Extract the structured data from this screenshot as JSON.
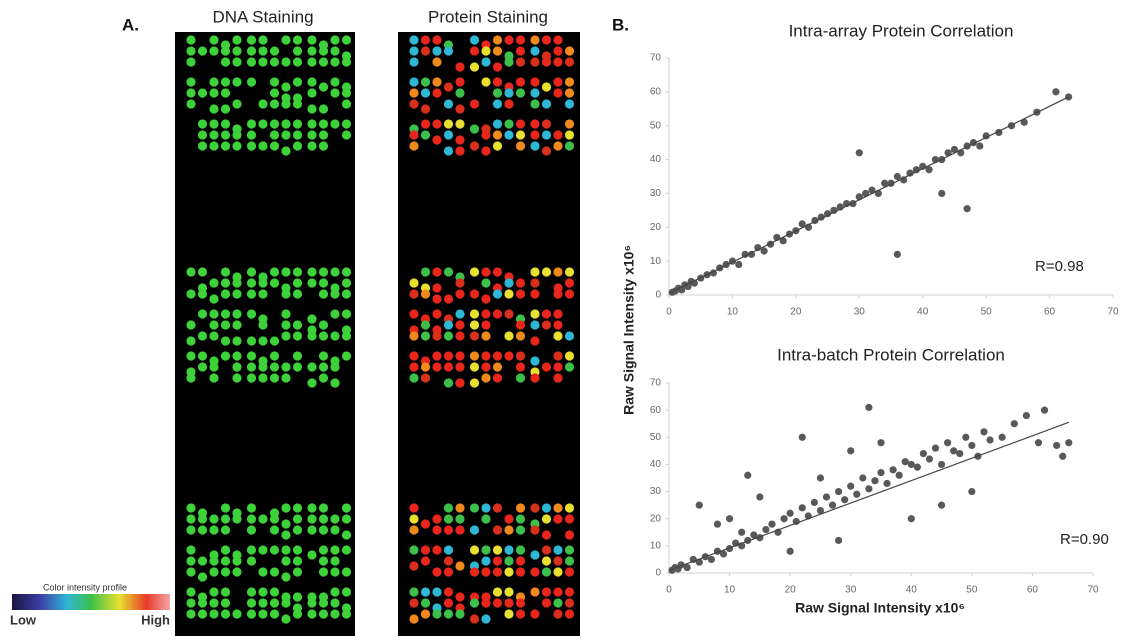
{
  "panel_a": {
    "label": "A.",
    "images": [
      {
        "title": "DNA Staining"
      },
      {
        "title": "Protein Staining"
      }
    ],
    "legend": {
      "title": "Color intensity profile",
      "low": "Low",
      "high": "High"
    }
  },
  "panel_b": {
    "label": "B.",
    "ylabel": "Raw Signal Intensity x10⁶"
  },
  "chart_data": [
    {
      "type": "scatter",
      "title": "Intra-array Protein Correlation",
      "annotation": "R=0.98",
      "color": "#595959",
      "xlim": [
        0,
        70
      ],
      "ylim": [
        0,
        70
      ],
      "xticks": [
        0,
        10,
        20,
        30,
        40,
        50,
        60,
        70
      ],
      "yticks": [
        0,
        10,
        20,
        30,
        40,
        50,
        60,
        70
      ],
      "x": [
        0.5,
        1,
        1.5,
        2,
        2.5,
        3,
        3.5,
        4,
        5,
        6,
        7,
        8,
        9,
        10,
        11,
        12,
        13,
        14,
        15,
        16,
        17,
        18,
        19,
        20,
        21,
        22,
        23,
        24,
        25,
        26,
        27,
        28,
        29,
        30,
        31,
        32,
        33,
        34,
        35,
        36,
        37,
        38,
        39,
        40,
        41,
        42,
        43,
        44,
        45,
        46,
        47,
        48,
        49,
        50,
        52,
        54,
        56,
        58,
        61,
        63,
        36,
        47,
        30,
        43
      ],
      "y": [
        0.8,
        1.2,
        2,
        1.5,
        3,
        2.5,
        4,
        3.5,
        5,
        6,
        6.5,
        8,
        9,
        10,
        9,
        12,
        12,
        14,
        13,
        15,
        17,
        16,
        18,
        19,
        21,
        20,
        22,
        23,
        24,
        25,
        26,
        27,
        27,
        29,
        30,
        31,
        30,
        33,
        33,
        35,
        34,
        36,
        37,
        38,
        37,
        40,
        40,
        42,
        43,
        42,
        44,
        45,
        44,
        47,
        48,
        50,
        51,
        54,
        60,
        58.5,
        12,
        25.5,
        42,
        30
      ],
      "trendline": {
        "x": [
          0,
          63
        ],
        "y": [
          0.5,
          58.5
        ]
      }
    },
    {
      "type": "scatter",
      "title": "Intra-batch Protein Correlation",
      "annotation": "R=0.90",
      "xlabel": "Raw Signal Intensity x10⁶",
      "color": "#595959",
      "xlim": [
        0,
        70
      ],
      "ylim": [
        0,
        70
      ],
      "xticks": [
        0,
        10,
        20,
        30,
        40,
        50,
        60,
        70
      ],
      "yticks": [
        0,
        10,
        20,
        30,
        40,
        50,
        60,
        70
      ],
      "x": [
        0.5,
        1,
        1.5,
        2,
        3,
        4,
        5,
        6,
        7,
        8,
        9,
        10,
        11,
        12,
        12,
        13,
        14,
        15,
        16,
        17,
        18,
        19,
        20,
        21,
        22,
        23,
        24,
        25,
        26,
        27,
        28,
        29,
        30,
        31,
        32,
        33,
        34,
        35,
        36,
        37,
        38,
        39,
        40,
        41,
        42,
        43,
        44,
        45,
        46,
        47,
        48,
        49,
        50,
        51,
        52,
        53,
        55,
        57,
        59,
        61,
        62,
        64,
        65,
        66,
        33,
        13,
        22,
        5,
        10,
        45,
        30,
        40,
        50,
        20,
        8,
        15,
        25,
        35,
        28
      ],
      "y": [
        1,
        2,
        1.5,
        3,
        2,
        5,
        4,
        6,
        5,
        8,
        7,
        9,
        11,
        10,
        15,
        12,
        14,
        13,
        16,
        18,
        15,
        20,
        22,
        19,
        24,
        21,
        26,
        23,
        28,
        25,
        30,
        27,
        32,
        29,
        35,
        31,
        34,
        37,
        33,
        38,
        36,
        41,
        40,
        39,
        44,
        42,
        46,
        40,
        48,
        45,
        44,
        50,
        47,
        43,
        52,
        49,
        50,
        55,
        58,
        48,
        60,
        47,
        43,
        48,
        61,
        36,
        50,
        25,
        20,
        25,
        45,
        20,
        30,
        8,
        18,
        28,
        35,
        48,
        12
      ],
      "trendline": {
        "x": [
          0,
          66
        ],
        "y": [
          1,
          55.5
        ]
      }
    }
  ]
}
